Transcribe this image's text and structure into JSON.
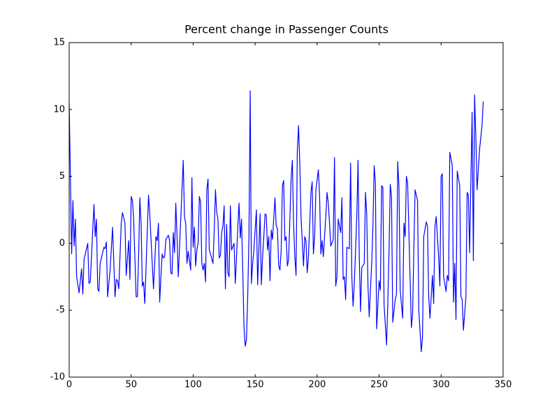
{
  "chart_data": {
    "type": "line",
    "title": "Percent change in Passenger Counts",
    "x": [
      0,
      2,
      3,
      4,
      5,
      6,
      8,
      10,
      11,
      12,
      15,
      16,
      17,
      20,
      21,
      22,
      23,
      24,
      25,
      28,
      29,
      30,
      31,
      33,
      35,
      37,
      38,
      39,
      40,
      42,
      43,
      45,
      46,
      48,
      49,
      50,
      51,
      52,
      54,
      55,
      56,
      57,
      58,
      59,
      60,
      61,
      64,
      65,
      67,
      68,
      70,
      71,
      72,
      73,
      74,
      75,
      76,
      77,
      78,
      80,
      81,
      82,
      83,
      84,
      85,
      86,
      87,
      88,
      90,
      91,
      92,
      93,
      94,
      95,
      96,
      98,
      99,
      100,
      101,
      102,
      103,
      104,
      105,
      106,
      107,
      108,
      109,
      110,
      111,
      112,
      113,
      114,
      116,
      117,
      118,
      119,
      120,
      121,
      122,
      123,
      124,
      125,
      126,
      127,
      128,
      129,
      130,
      131,
      133,
      134,
      135,
      136,
      137,
      138,
      139,
      140,
      141,
      142,
      143,
      144,
      145,
      146,
      147,
      148,
      149,
      150,
      151,
      152,
      154,
      155,
      156,
      157,
      158,
      159,
      160,
      161,
      162,
      163,
      164,
      166,
      167,
      168,
      169,
      170,
      171,
      172,
      173,
      174,
      175,
      176,
      177,
      179,
      180,
      181,
      182,
      183,
      184,
      185,
      186,
      187,
      189,
      190,
      191,
      192,
      193,
      195,
      196,
      197,
      198,
      199,
      201,
      202,
      203,
      204,
      205,
      207,
      208,
      209,
      210,
      211,
      213,
      214,
      215,
      216,
      217,
      219,
      220,
      221,
      222,
      223,
      224,
      226,
      227,
      228,
      229,
      230,
      232,
      233,
      234,
      235,
      236,
      238,
      239,
      240,
      241,
      242,
      244,
      245,
      246,
      247,
      248,
      250,
      251,
      252,
      253,
      254,
      256,
      257,
      258,
      259,
      260,
      261,
      263,
      264,
      265,
      266,
      267,
      269,
      270,
      271,
      272,
      273,
      275,
      276,
      277,
      278,
      279,
      281,
      282,
      284,
      285,
      286,
      288,
      289,
      290,
      291,
      293,
      294,
      295,
      296,
      298,
      299,
      300,
      301,
      302,
      304,
      305,
      306,
      307,
      309,
      310,
      311,
      312,
      313,
      315,
      316,
      317,
      318,
      320,
      321,
      322,
      323,
      325,
      326,
      327,
      328,
      329,
      330,
      331,
      333,
      334
    ],
    "values": [
      10.5,
      -0.8,
      3.2,
      -0.2,
      1.8,
      -2.5,
      -3.7,
      -1.9,
      -3.8,
      -1.2,
      0,
      -3,
      -2.9,
      2.9,
      0.5,
      1.8,
      -3.4,
      -3.6,
      -1.5,
      -0.3,
      -0.4,
      0.1,
      -4,
      -2,
      1.2,
      -4,
      -2.7,
      -2.8,
      -3.4,
      1.5,
      2.3,
      1.5,
      -2.4,
      0.2,
      -2.7,
      3.5,
      3.2,
      1.8,
      -4,
      -4,
      -1,
      3.4,
      1.5,
      -3.2,
      -2.9,
      -4.5,
      3.6,
      2.2,
      -1.5,
      -3.4,
      0.5,
      0.2,
      1.5,
      -4.4,
      -2.5,
      -0.8,
      -1.1,
      -1,
      0.3,
      0.6,
      0.2,
      -2.2,
      -2.3,
      0.8,
      -0.7,
      3,
      0.5,
      -2.5,
      1.8,
      4,
      6.2,
      2,
      1.5,
      -1.5,
      -0.6,
      -2,
      4.9,
      -0.3,
      1.2,
      -1.7,
      -0.5,
      0,
      3.5,
      3.1,
      -1.5,
      -2,
      -1.5,
      -2.9,
      4,
      4.8,
      -0.5,
      -0.8,
      -1.5,
      1,
      4,
      2.3,
      1.8,
      -1.1,
      -0.9,
      0.8,
      1.3,
      2.8,
      -3.4,
      1.4,
      -2.2,
      -2.5,
      2.8,
      -0.5,
      0,
      -3,
      -1,
      1.2,
      3,
      0.4,
      1.8,
      -2,
      -6.2,
      -7.7,
      -7.2,
      -4,
      0.5,
      11.4,
      -3,
      -1.5,
      -0.5,
      1,
      2.5,
      -3.1,
      2.2,
      -3.1,
      -1,
      0.5,
      2.2,
      2.1,
      -0.5,
      0.5,
      -2.8,
      1,
      0.3,
      3.4,
      1.3,
      1.1,
      -1.7,
      -2,
      -0.5,
      4.3,
      4.7,
      0.2,
      0.5,
      -1.7,
      -1.2,
      4.8,
      6.2,
      1.5,
      -1,
      -2.4,
      6.9,
      8.8,
      6,
      2,
      -1.7,
      0.5,
      0.2,
      -2.2,
      -1,
      3.8,
      4.6,
      -0.8,
      0.5,
      4,
      5.5,
      3.5,
      -0.8,
      0.2,
      -1,
      2,
      3.8,
      3,
      1.5,
      -0.2,
      0.3,
      6.4,
      -3.2,
      -2.5,
      1.8,
      0.8,
      3.4,
      -2.7,
      -2.5,
      -4.2,
      -0.3,
      -0.4,
      6,
      -2.5,
      -4.7,
      -3,
      2,
      6.2,
      -1,
      -5.1,
      -1.8,
      -1.5,
      3.8,
      2.2,
      -3.1,
      -5.5,
      -1.5,
      1.2,
      5.8,
      4.5,
      -6.4,
      -2.8,
      -3.5,
      4.3,
      4.2,
      -4.6,
      -7.6,
      -4.5,
      -0.5,
      4.4,
      3.5,
      -5.9,
      -4.2,
      -3.8,
      6.1,
      4.2,
      -3.5,
      -5.6,
      1.5,
      0.5,
      5,
      4.5,
      -2.7,
      -6.3,
      -5.3,
      -0.5,
      4,
      3.2,
      -5,
      -8.1,
      -7,
      0.5,
      1.6,
      1.3,
      -4,
      -5.6,
      -2.4,
      -4.5,
      1.2,
      2,
      -1,
      -3.2,
      5,
      5.2,
      -2.5,
      -3.6,
      -2.4,
      -2.8,
      6.8,
      5.8,
      -4.4,
      -1.5,
      -5.7,
      5.4,
      4.3,
      -4,
      -4.2,
      -6.5,
      -4,
      3.8,
      3.6,
      -0.7,
      9.8,
      -1.3,
      11.1,
      8,
      4,
      5.5,
      7,
      8.8,
      10.6
    ],
    "color": "#0000ff",
    "xlim": [
      0,
      350
    ],
    "ylim": [
      -10,
      15
    ],
    "xticks": [
      0,
      50,
      100,
      150,
      200,
      250,
      300,
      350
    ],
    "yticks": [
      -10,
      -5,
      0,
      5,
      10,
      15
    ],
    "grid": false
  }
}
